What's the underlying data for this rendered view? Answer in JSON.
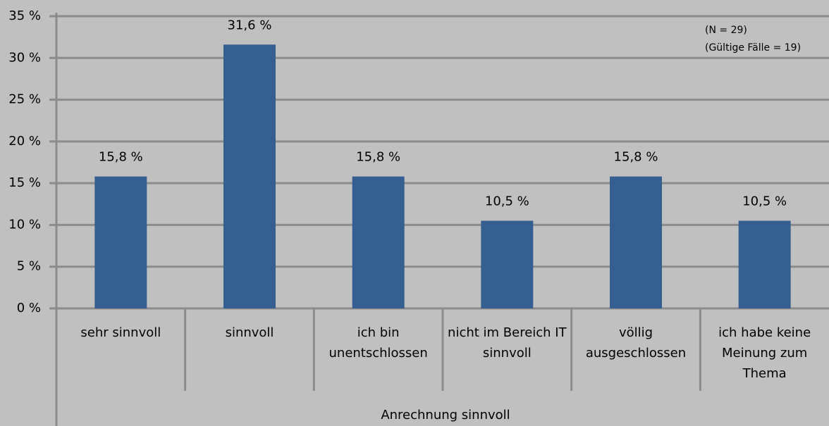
{
  "chart_data": {
    "type": "bar",
    "categories": [
      "sehr sinnvoll",
      "sinnvoll",
      "ich bin unentschlossen",
      "nicht im Bereich IT sinnvoll",
      "völlig ausgeschlossen",
      "ich habe keine Meinung zum Thema"
    ],
    "values": [
      15.8,
      31.6,
      15.8,
      10.5,
      15.8,
      10.5
    ],
    "value_labels": [
      "15,8 %",
      "31,6 %",
      "15,8 %",
      "10,5 %",
      "15,8 %",
      "10,5 %"
    ],
    "color": "#355f91",
    "xlabel": "Anrechnung sinnvoll",
    "annotations": [
      "(N = 29)",
      "(Gültige Fälle = 19)"
    ],
    "ylim": [
      0,
      35
    ],
    "yticks": [
      {
        "value": 0,
        "label": "0 %"
      },
      {
        "value": 5,
        "label": "5 %"
      },
      {
        "value": 10,
        "label": "10 %"
      },
      {
        "value": 15,
        "label": "15 %"
      },
      {
        "value": 20,
        "label": "20 %"
      },
      {
        "value": 25,
        "label": "25 %"
      },
      {
        "value": 30,
        "label": "30 %"
      },
      {
        "value": 35,
        "label": "35 %"
      }
    ],
    "grid": true
  }
}
